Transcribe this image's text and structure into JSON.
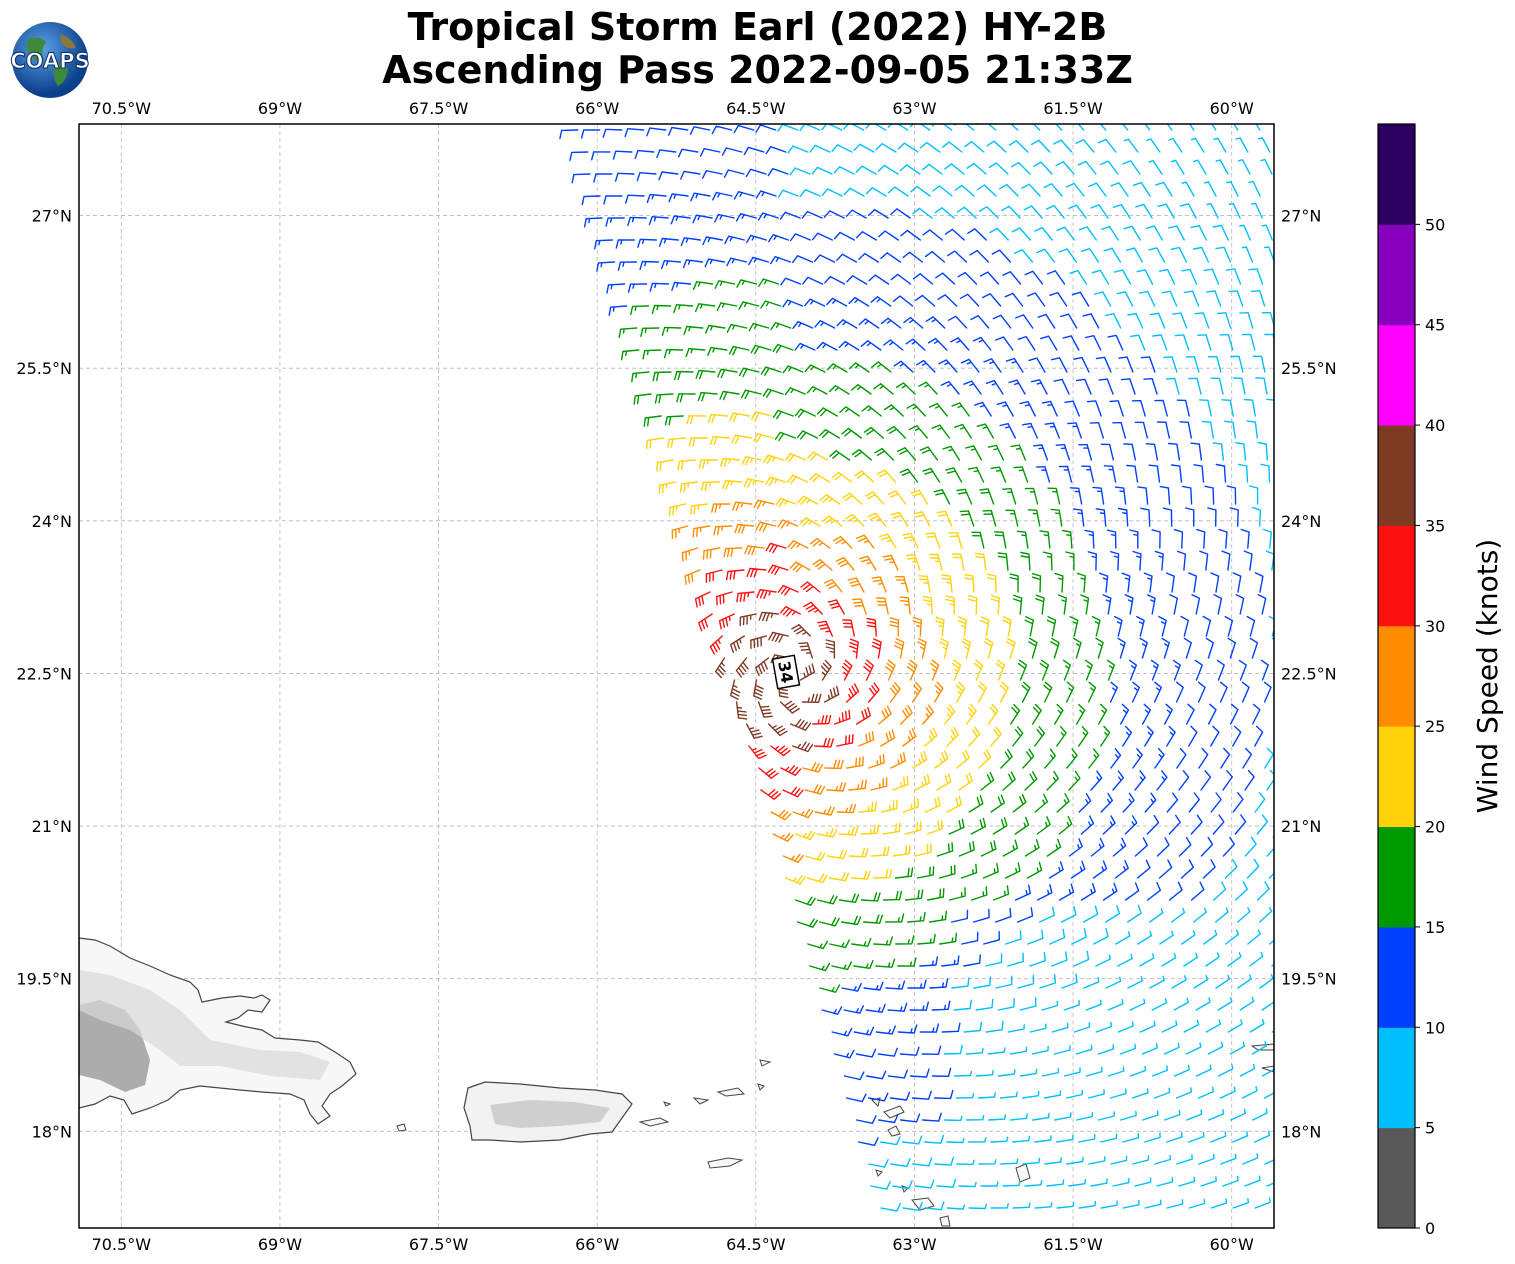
{
  "header": {
    "logo_text": "COAPS",
    "title_line1": "Tropical Storm Earl (2022) HY-2B",
    "title_line2": "Ascending Pass 2022-09-05 21:33Z"
  },
  "map": {
    "lon_range": [
      -70.9,
      -59.6
    ],
    "lat_range": [
      17.05,
      27.9
    ],
    "lon_ticks": [
      {
        "value": -70.5,
        "label": "70.5°W"
      },
      {
        "value": -69.0,
        "label": "69°W"
      },
      {
        "value": -67.5,
        "label": "67.5°W"
      },
      {
        "value": -66.0,
        "label": "66°W"
      },
      {
        "value": -64.5,
        "label": "64.5°W"
      },
      {
        "value": -63.0,
        "label": "63°W"
      },
      {
        "value": -61.5,
        "label": "61.5°W"
      },
      {
        "value": -60.0,
        "label": "60°W"
      }
    ],
    "lat_ticks": [
      {
        "value": 27.0,
        "label": "27°N"
      },
      {
        "value": 25.5,
        "label": "25.5°N"
      },
      {
        "value": 24.0,
        "label": "24°N"
      },
      {
        "value": 22.5,
        "label": "22.5°N"
      },
      {
        "value": 21.0,
        "label": "21°N"
      },
      {
        "value": 19.5,
        "label": "19.5°N"
      },
      {
        "value": 18.0,
        "label": "18°N"
      }
    ],
    "storm_marker": {
      "label": "34",
      "lon": -64.15,
      "lat": 22.5
    },
    "swath": {
      "west_edge_north_lon": -66.2,
      "west_edge_south_lon": -63.3,
      "east_edge_lon": -59.6
    },
    "wind_direction": "cyclonic circulation around storm center"
  },
  "colorbar": {
    "label": "Wind Speed (knots)",
    "ticks": [
      "0",
      "5",
      "10",
      "15",
      "20",
      "25",
      "30",
      "35",
      "40",
      "45",
      "50"
    ],
    "colors": [
      "#595959",
      "#00bfff",
      "#0040ff",
      "#009900",
      "#ffd20a",
      "#ff8c00",
      "#ff1010",
      "#7f3a24",
      "#ff00ff",
      "#8800bb",
      "#2b0060"
    ]
  }
}
